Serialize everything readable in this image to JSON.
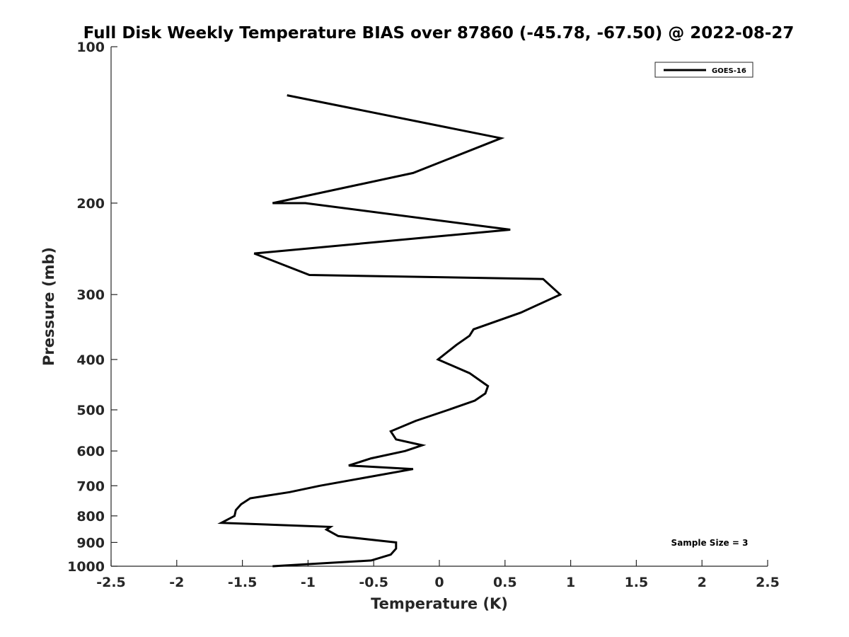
{
  "chart_data": {
    "type": "line",
    "title": "Full Disk Weekly Temperature BIAS over 87860 (-45.78, -67.50) @ 2022-08-27",
    "xlabel": "Temperature (K)",
    "ylabel": "Pressure (mb)",
    "xlim": [
      -2.5,
      2.5
    ],
    "ylim": [
      1000,
      100
    ],
    "yscale": "log",
    "grid": false,
    "legend_position": "top-right",
    "x_ticks": [
      -2.5,
      -2,
      -1.5,
      -1,
      -0.5,
      0,
      0.5,
      1,
      1.5,
      2,
      2.5
    ],
    "x_tick_labels": [
      "-2.5",
      "-2",
      "-1.5",
      "-1",
      "-0.5",
      "0",
      "0.5",
      "1",
      "1.5",
      "2",
      "2.5"
    ],
    "y_ticks": [
      100,
      200,
      300,
      400,
      500,
      600,
      700,
      800,
      900,
      1000
    ],
    "y_tick_labels": [
      "100",
      "200",
      "300",
      "400",
      "500",
      "600",
      "700",
      "800",
      "900",
      "1000"
    ],
    "annotation": "Sample Size = 3",
    "series": [
      {
        "name": "GOES-16",
        "color": "#000000",
        "points": [
          {
            "x": -1.16,
            "p": 124
          },
          {
            "x": 0.47,
            "p": 150
          },
          {
            "x": -0.2,
            "p": 175
          },
          {
            "x": -1.27,
            "p": 200
          },
          {
            "x": -1.02,
            "p": 200
          },
          {
            "x": 0.54,
            "p": 225
          },
          {
            "x": -1.41,
            "p": 250
          },
          {
            "x": -0.99,
            "p": 275
          },
          {
            "x": 0.79,
            "p": 280
          },
          {
            "x": 0.92,
            "p": 300
          },
          {
            "x": 0.62,
            "p": 325
          },
          {
            "x": 0.26,
            "p": 350
          },
          {
            "x": 0.23,
            "p": 360
          },
          {
            "x": 0.13,
            "p": 375
          },
          {
            "x": -0.01,
            "p": 400
          },
          {
            "x": 0.23,
            "p": 425
          },
          {
            "x": 0.37,
            "p": 450
          },
          {
            "x": 0.35,
            "p": 465
          },
          {
            "x": 0.27,
            "p": 480
          },
          {
            "x": 0.07,
            "p": 500
          },
          {
            "x": -0.18,
            "p": 525
          },
          {
            "x": -0.37,
            "p": 550
          },
          {
            "x": -0.33,
            "p": 570
          },
          {
            "x": -0.13,
            "p": 585
          },
          {
            "x": -0.26,
            "p": 600
          },
          {
            "x": -0.52,
            "p": 620
          },
          {
            "x": -0.69,
            "p": 640
          },
          {
            "x": -0.2,
            "p": 650
          },
          {
            "x": -0.91,
            "p": 700
          },
          {
            "x": -1.14,
            "p": 720
          },
          {
            "x": -1.44,
            "p": 740
          },
          {
            "x": -1.51,
            "p": 760
          },
          {
            "x": -1.55,
            "p": 780
          },
          {
            "x": -1.56,
            "p": 800
          },
          {
            "x": -1.66,
            "p": 825
          },
          {
            "x": -0.83,
            "p": 840
          },
          {
            "x": -0.86,
            "p": 850
          },
          {
            "x": -0.77,
            "p": 875
          },
          {
            "x": -0.33,
            "p": 900
          },
          {
            "x": -0.33,
            "p": 925
          },
          {
            "x": -0.37,
            "p": 950
          },
          {
            "x": -0.52,
            "p": 975
          },
          {
            "x": -1.27,
            "p": 1000
          }
        ]
      }
    ]
  }
}
